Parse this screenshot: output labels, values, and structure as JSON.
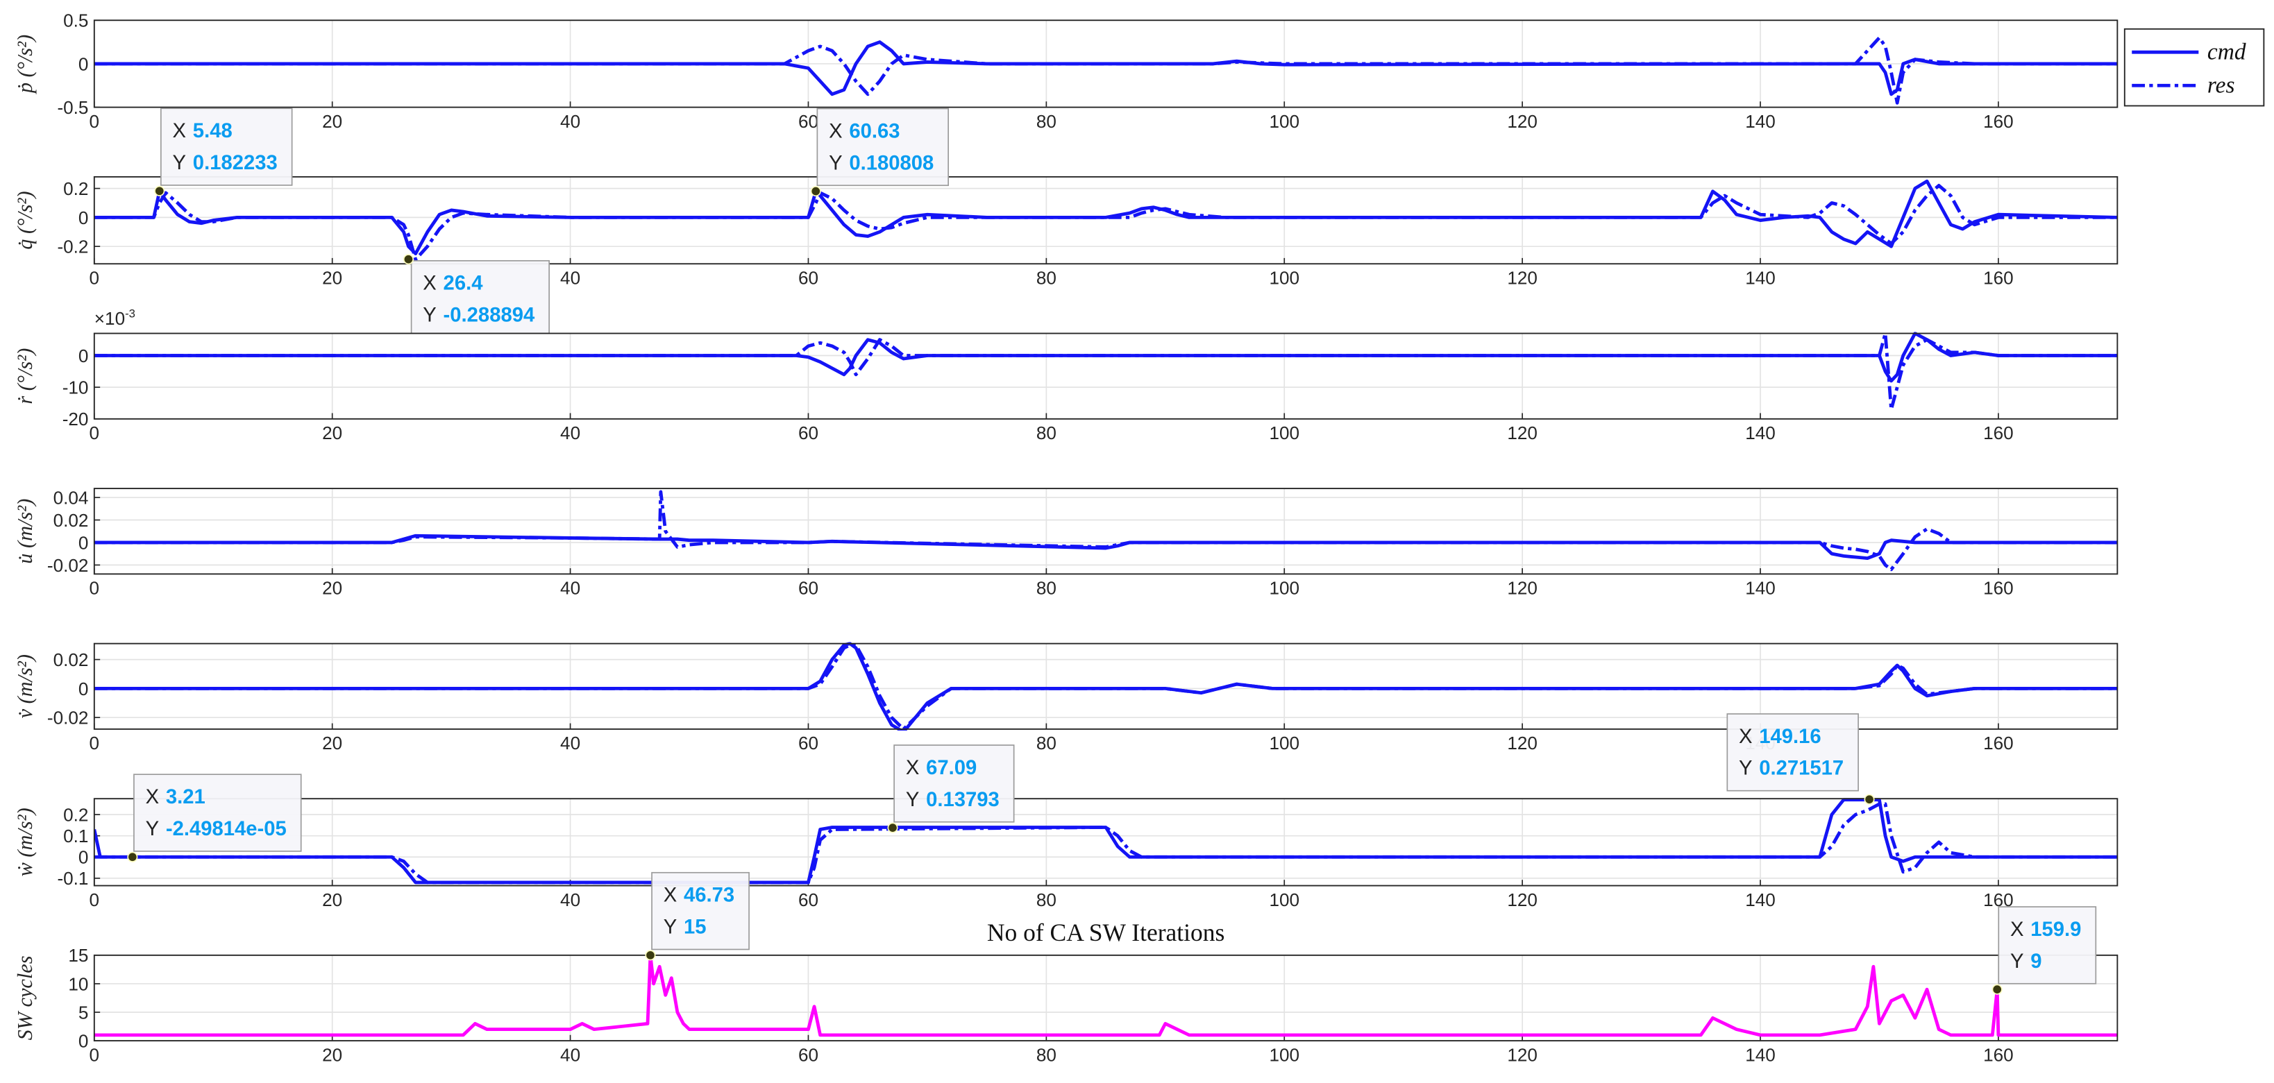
{
  "chart_data": [
    {
      "type": "line",
      "ylabel": "ṗ (°/s²)",
      "xlim": [
        0,
        170
      ],
      "xticks": [
        0,
        20,
        40,
        60,
        80,
        100,
        120,
        140,
        160
      ],
      "ylim": [
        -0.5,
        0.5
      ],
      "yticks": [
        -0.5,
        0,
        0.5
      ],
      "grid": true,
      "legend": "outside-right",
      "x": [
        0,
        58,
        60,
        61,
        62,
        63,
        64,
        65,
        66,
        67,
        68,
        70,
        75,
        94,
        96,
        98,
        100,
        148,
        150,
        150.5,
        151,
        151.5,
        152,
        153,
        155,
        158,
        170
      ],
      "series": [
        {
          "name": "cmd",
          "color": "#1414f5",
          "linestyle": "solid",
          "values": [
            0,
            0,
            -0.05,
            -0.2,
            -0.35,
            -0.3,
            0,
            0.2,
            0.25,
            0.15,
            0,
            0.02,
            0,
            0,
            0.03,
            0,
            -0.01,
            0,
            0,
            -0.1,
            -0.35,
            -0.3,
            0,
            0.05,
            0,
            0,
            0
          ]
        },
        {
          "name": "res",
          "color": "#1414f5",
          "linestyle": "dashdot",
          "values": [
            0,
            0,
            0.15,
            0.2,
            0.15,
            0,
            -0.2,
            -0.35,
            -0.2,
            0,
            0.1,
            0.05,
            0,
            0,
            0.02,
            0.01,
            0,
            0,
            0.3,
            0.2,
            -0.1,
            -0.45,
            -0.1,
            0.05,
            0.02,
            0,
            0
          ]
        }
      ],
      "datatips": []
    },
    {
      "type": "line",
      "ylabel": "q̇ (°/s²)",
      "xlim": [
        0,
        170
      ],
      "xticks": [
        0,
        20,
        40,
        60,
        80,
        100,
        120,
        140,
        160
      ],
      "ylim": [
        -0.32,
        0.28
      ],
      "yticks": [
        -0.2,
        0,
        0.2
      ],
      "grid": true,
      "x": [
        0,
        5,
        5.48,
        6,
        7,
        8,
        9,
        10,
        12,
        25,
        26,
        26.4,
        27,
        28,
        29,
        30,
        31,
        33,
        40,
        60,
        60.63,
        61,
        62,
        63,
        64,
        65,
        66,
        67,
        68,
        70,
        75,
        85,
        87,
        88,
        89,
        90,
        91,
        92,
        95,
        135,
        136,
        137,
        138,
        140,
        142,
        144,
        145,
        146,
        147,
        148,
        149,
        150,
        151,
        152,
        153,
        154,
        155,
        156,
        157,
        158,
        160,
        170
      ],
      "series": [
        {
          "name": "cmd",
          "color": "#1414f5",
          "linestyle": "solid",
          "values": [
            0,
            0,
            0.18,
            0.12,
            0.02,
            -0.03,
            -0.04,
            -0.02,
            0,
            0,
            -0.1,
            -0.2,
            -0.25,
            -0.1,
            0.02,
            0.05,
            0.04,
            0.01,
            0,
            0,
            0.18,
            0.15,
            0.05,
            -0.05,
            -0.12,
            -0.13,
            -0.1,
            -0.05,
            0,
            0.02,
            0,
            0,
            0.03,
            0.06,
            0.07,
            0.05,
            0.02,
            0,
            0,
            0,
            0.18,
            0.12,
            0.02,
            -0.02,
            0,
            0.01,
            0,
            -0.1,
            -0.15,
            -0.18,
            -0.1,
            -0.15,
            -0.2,
            0,
            0.2,
            0.25,
            0.1,
            -0.05,
            -0.08,
            -0.03,
            0.02,
            0
          ]
        },
        {
          "name": "res",
          "color": "#1414f5",
          "linestyle": "dashdot",
          "values": [
            0,
            0,
            0.1,
            0.17,
            0.1,
            0.02,
            -0.03,
            -0.03,
            0,
            0,
            -0.05,
            -0.12,
            -0.29,
            -0.2,
            -0.08,
            0,
            0.03,
            0.02,
            0,
            0,
            0.1,
            0.17,
            0.13,
            0.05,
            -0.02,
            -0.06,
            -0.08,
            -0.07,
            -0.04,
            0,
            0,
            0,
            0,
            0.03,
            0.05,
            0.06,
            0.04,
            0.02,
            0,
            0,
            0.1,
            0.15,
            0.1,
            0.02,
            0.01,
            0,
            0.03,
            0.1,
            0.08,
            0.02,
            -0.05,
            -0.12,
            -0.18,
            -0.1,
            0.05,
            0.15,
            0.22,
            0.15,
            0,
            -0.05,
            0,
            0
          ]
        }
      ],
      "datatips": [
        {
          "x_name": "X",
          "x": 5.48,
          "y_name": "Y",
          "y": 0.182233
        },
        {
          "x_name": "X",
          "x": 26.4,
          "y_name": "Y",
          "y": -0.288894
        },
        {
          "x_name": "X",
          "x": 60.63,
          "y_name": "Y",
          "y": 0.180808
        }
      ]
    },
    {
      "type": "line",
      "ylabel": "ṙ (°/s²)",
      "y_multiplier": "×10",
      "y_exponent": "-3",
      "xlim": [
        0,
        170
      ],
      "xticks": [
        0,
        20,
        40,
        60,
        80,
        100,
        120,
        140,
        160
      ],
      "ylim": [
        -20,
        7
      ],
      "yticks": [
        -20,
        -10,
        0
      ],
      "grid": true,
      "x": [
        0,
        59,
        60,
        61,
        62,
        63,
        63.5,
        64,
        65,
        66,
        67,
        68,
        70,
        75,
        150,
        150.5,
        151,
        151.5,
        152,
        153,
        154,
        155,
        156,
        158,
        160,
        170
      ],
      "series": [
        {
          "name": "cmd",
          "color": "#1414f5",
          "linestyle": "solid",
          "values": [
            0,
            0,
            -0.5,
            -2,
            -4,
            -6,
            -4,
            0,
            5,
            4,
            1,
            -1,
            0,
            0,
            0,
            -5,
            -8,
            -6,
            0,
            7,
            5,
            2,
            0,
            1,
            0,
            0
          ]
        },
        {
          "name": "res",
          "color": "#1414f5",
          "linestyle": "dashdot",
          "values": [
            0,
            0,
            3,
            4,
            3,
            1,
            -2,
            -6,
            -1,
            5,
            3,
            0,
            0,
            0,
            0,
            7,
            -17,
            -10,
            -3,
            3,
            5,
            3,
            1,
            1,
            0,
            0
          ]
        }
      ],
      "datatips": []
    },
    {
      "type": "line",
      "ylabel": "u̇ (m/s²)",
      "xlim": [
        0,
        170
      ],
      "xticks": [
        0,
        20,
        40,
        60,
        80,
        100,
        120,
        140,
        160
      ],
      "ylim": [
        -0.028,
        0.048
      ],
      "yticks": [
        -0.02,
        0,
        0.02,
        0.04
      ],
      "grid": true,
      "x": [
        0,
        25,
        26,
        27,
        40,
        47.5,
        47.6,
        48,
        49,
        50,
        52,
        60,
        62,
        85,
        86,
        87,
        145,
        146,
        147,
        148,
        149,
        150,
        150.5,
        151,
        152,
        153,
        154,
        155,
        156,
        170
      ],
      "series": [
        {
          "name": "cmd",
          "color": "#1414f5",
          "linestyle": "solid",
          "values": [
            0,
            0,
            0.003,
            0.006,
            0.004,
            0.003,
            0.003,
            0.003,
            0.003,
            0.002,
            0.002,
            0,
            0.001,
            -0.005,
            -0.003,
            0,
            0,
            -0.01,
            -0.012,
            -0.013,
            -0.014,
            -0.01,
            0,
            0.002,
            0.001,
            0,
            0,
            0,
            0,
            0
          ]
        },
        {
          "name": "res",
          "color": "#1414f5",
          "linestyle": "dashdot",
          "values": [
            0,
            0,
            0.002,
            0.005,
            0.004,
            0.003,
            0.045,
            0.01,
            -0.004,
            -0.002,
            0,
            0,
            0.001,
            -0.004,
            -0.002,
            0,
            0,
            -0.003,
            -0.005,
            -0.006,
            -0.008,
            -0.012,
            -0.02,
            -0.024,
            -0.01,
            0.005,
            0.012,
            0.008,
            0,
            0
          ]
        }
      ],
      "datatips": []
    },
    {
      "type": "line",
      "ylabel": "v̇ (m/s²)",
      "xlim": [
        0,
        170
      ],
      "xticks": [
        0,
        20,
        40,
        60,
        80,
        100,
        120,
        140,
        160
      ],
      "ylim": [
        -0.028,
        0.031
      ],
      "yticks": [
        -0.02,
        0,
        0.02
      ],
      "grid": true,
      "x": [
        0,
        60,
        61,
        62,
        63,
        63.5,
        64,
        65,
        66,
        67,
        68,
        70,
        72,
        90,
        93,
        96,
        99,
        102,
        148,
        150,
        151,
        151.5,
        152,
        153,
        154,
        156,
        158,
        170
      ],
      "series": [
        {
          "name": "cmd",
          "color": "#1414f5",
          "linestyle": "solid",
          "values": [
            0,
            0,
            0.005,
            0.02,
            0.03,
            0.031,
            0.028,
            0.01,
            -0.01,
            -0.025,
            -0.03,
            -0.01,
            0,
            0,
            -0.003,
            0.003,
            0,
            0,
            0,
            0.003,
            0.012,
            0.016,
            0.012,
            0,
            -0.005,
            -0.002,
            0,
            0
          ]
        },
        {
          "name": "res",
          "color": "#1414f5",
          "linestyle": "dashdot",
          "values": [
            0,
            0,
            0.003,
            0.015,
            0.028,
            0.03,
            0.03,
            0.015,
            -0.005,
            -0.02,
            -0.028,
            -0.012,
            0,
            0,
            -0.003,
            0.003,
            0,
            0,
            0,
            0.002,
            0.01,
            0.016,
            0.014,
            0.003,
            -0.004,
            -0.002,
            0,
            0
          ]
        }
      ],
      "datatips": []
    },
    {
      "type": "line",
      "ylabel": "ẇ (m/s²)",
      "xlim": [
        0,
        170
      ],
      "xticks": [
        0,
        20,
        40,
        60,
        80,
        100,
        120,
        140,
        160
      ],
      "ylim": [
        -0.135,
        0.275
      ],
      "yticks": [
        -0.1,
        0,
        0.1,
        0.2
      ],
      "grid": true,
      "x": [
        0,
        0.5,
        1,
        25,
        26,
        27,
        28,
        60,
        60.5,
        61,
        62,
        85,
        86,
        87,
        88,
        145,
        146,
        147,
        148,
        149,
        150,
        150.5,
        151,
        152,
        153,
        154,
        155,
        156,
        158,
        170
      ],
      "series": [
        {
          "name": "cmd",
          "color": "#1414f5",
          "linestyle": "solid",
          "values": [
            0.13,
            0,
            0,
            0,
            -0.05,
            -0.12,
            -0.12,
            -0.12,
            0,
            0.13,
            0.14,
            0.14,
            0.05,
            0,
            0,
            0,
            0.2,
            0.27,
            0.27,
            0.27,
            0.27,
            0.1,
            0,
            -0.02,
            0,
            0,
            0,
            0,
            0,
            0
          ]
        },
        {
          "name": "res",
          "color": "#1414f5",
          "linestyle": "dashdot",
          "values": [
            0,
            0,
            0,
            0,
            -0.02,
            -0.08,
            -0.12,
            -0.12,
            -0.05,
            0.08,
            0.13,
            0.14,
            0.1,
            0.03,
            0,
            0,
            0.05,
            0.15,
            0.2,
            0.22,
            0.25,
            0.25,
            0.1,
            -0.07,
            -0.05,
            0.02,
            0.07,
            0.02,
            0,
            0
          ]
        }
      ],
      "datatips": [
        {
          "x_name": "X",
          "x": 3.21,
          "y_name": "Y",
          "y": {
            "value": -2.49814e-05,
            "label": "-2.49814e-05"
          }
        },
        {
          "x_name": "X",
          "x": 67.09,
          "y_name": "Y",
          "y": 0.13793
        },
        {
          "x_name": "X",
          "x": 149.16,
          "y_name": "Y",
          "y": 0.271517
        }
      ]
    },
    {
      "type": "line",
      "title": "No of CA SW Iterations",
      "ylabel": "SW cycles",
      "xlim": [
        0,
        170
      ],
      "xticks": [
        0,
        20,
        40,
        60,
        80,
        100,
        120,
        140,
        160
      ],
      "ylim": [
        0,
        15
      ],
      "yticks": [
        0,
        5,
        10,
        15
      ],
      "grid": true,
      "color": "#ff00ff",
      "x": [
        0,
        31,
        32,
        33,
        34,
        40,
        41,
        42,
        46.5,
        46.73,
        47,
        47.5,
        48,
        48.5,
        49,
        49.5,
        50,
        51,
        60,
        60.5,
        61,
        89.5,
        90,
        91,
        92,
        135,
        136,
        138,
        140,
        142,
        145,
        148,
        149,
        149.5,
        150,
        151,
        152,
        153,
        154,
        155,
        156,
        158,
        159.5,
        159.9,
        160,
        170
      ],
      "values": [
        1,
        1,
        3,
        2,
        2,
        2,
        3,
        2,
        3,
        15,
        10,
        13,
        8,
        11,
        5,
        3,
        2,
        2,
        2,
        6,
        1,
        1,
        3,
        2,
        1,
        1,
        4,
        2,
        1,
        1,
        1,
        2,
        6,
        13,
        3,
        7,
        8,
        4,
        9,
        2,
        1,
        1,
        1,
        9,
        1,
        1
      ],
      "datatips": [
        {
          "x_name": "X",
          "x": 46.73,
          "y_name": "Y",
          "y": 15
        },
        {
          "x_name": "X",
          "x": 159.9,
          "y_name": "Y",
          "y": 9
        }
      ]
    }
  ]
}
